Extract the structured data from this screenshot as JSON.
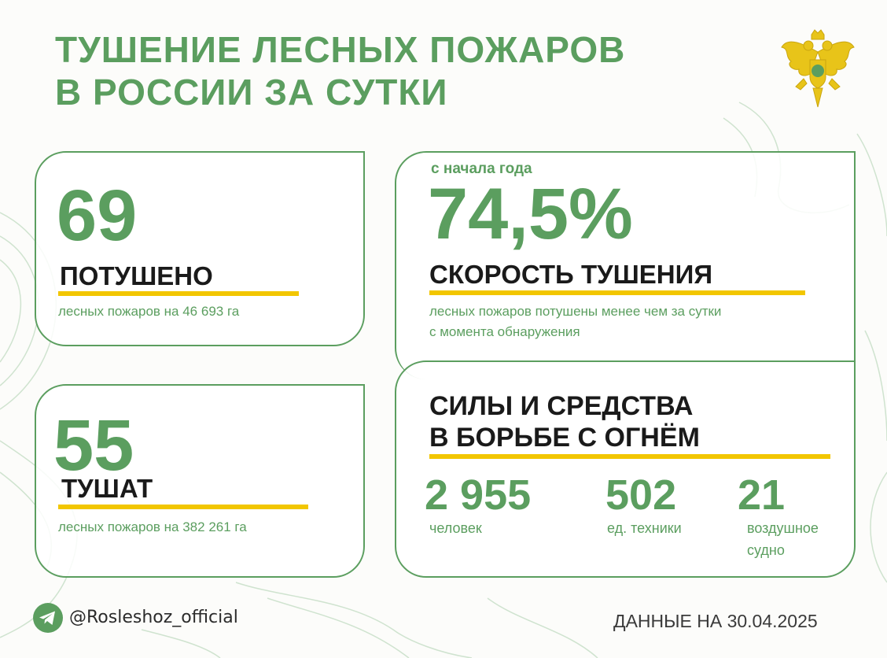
{
  "title": {
    "line1": "ТУШЕНИЕ ЛЕСНЫХ ПОЖАРОВ",
    "line2": "В РОССИИ ЗА СУТКИ"
  },
  "emblem_icon": "double-headed-eagle-emblem",
  "card_extinguished": {
    "value": "69",
    "label": "ПОТУШЕНО",
    "detail": "лесных пожаров на 46 693 га"
  },
  "card_burning": {
    "value": "55",
    "label": "ТУШАТ",
    "detail": "лесных пожаров на 382 261 га"
  },
  "card_speed": {
    "since": "с начала года",
    "value": "74,5%",
    "label": "СКОРОСТЬ ТУШЕНИЯ",
    "detail_line1": "лесных пожаров потушены менее чем за сутки",
    "detail_line2": "с момента обнаружения"
  },
  "card_forces": {
    "label_line1": "СИЛЫ И СРЕДСТВА",
    "label_line2": "В БОРЬБЕ С ОГНЁМ",
    "stats": [
      {
        "value": "2 955",
        "unit": "человек"
      },
      {
        "value": "502",
        "unit": "ед. техники"
      },
      {
        "value": "21",
        "unit_line1": "воздушное",
        "unit_line2": "судно"
      }
    ]
  },
  "footer": {
    "handle": "@Rosleshoz_official",
    "date": "ДАННЫЕ НА 30.04.2025",
    "icon": "telegram-icon"
  },
  "colors": {
    "green": "#5b9e5f",
    "yellow": "#f2c600",
    "dark": "#1a1a1a"
  }
}
